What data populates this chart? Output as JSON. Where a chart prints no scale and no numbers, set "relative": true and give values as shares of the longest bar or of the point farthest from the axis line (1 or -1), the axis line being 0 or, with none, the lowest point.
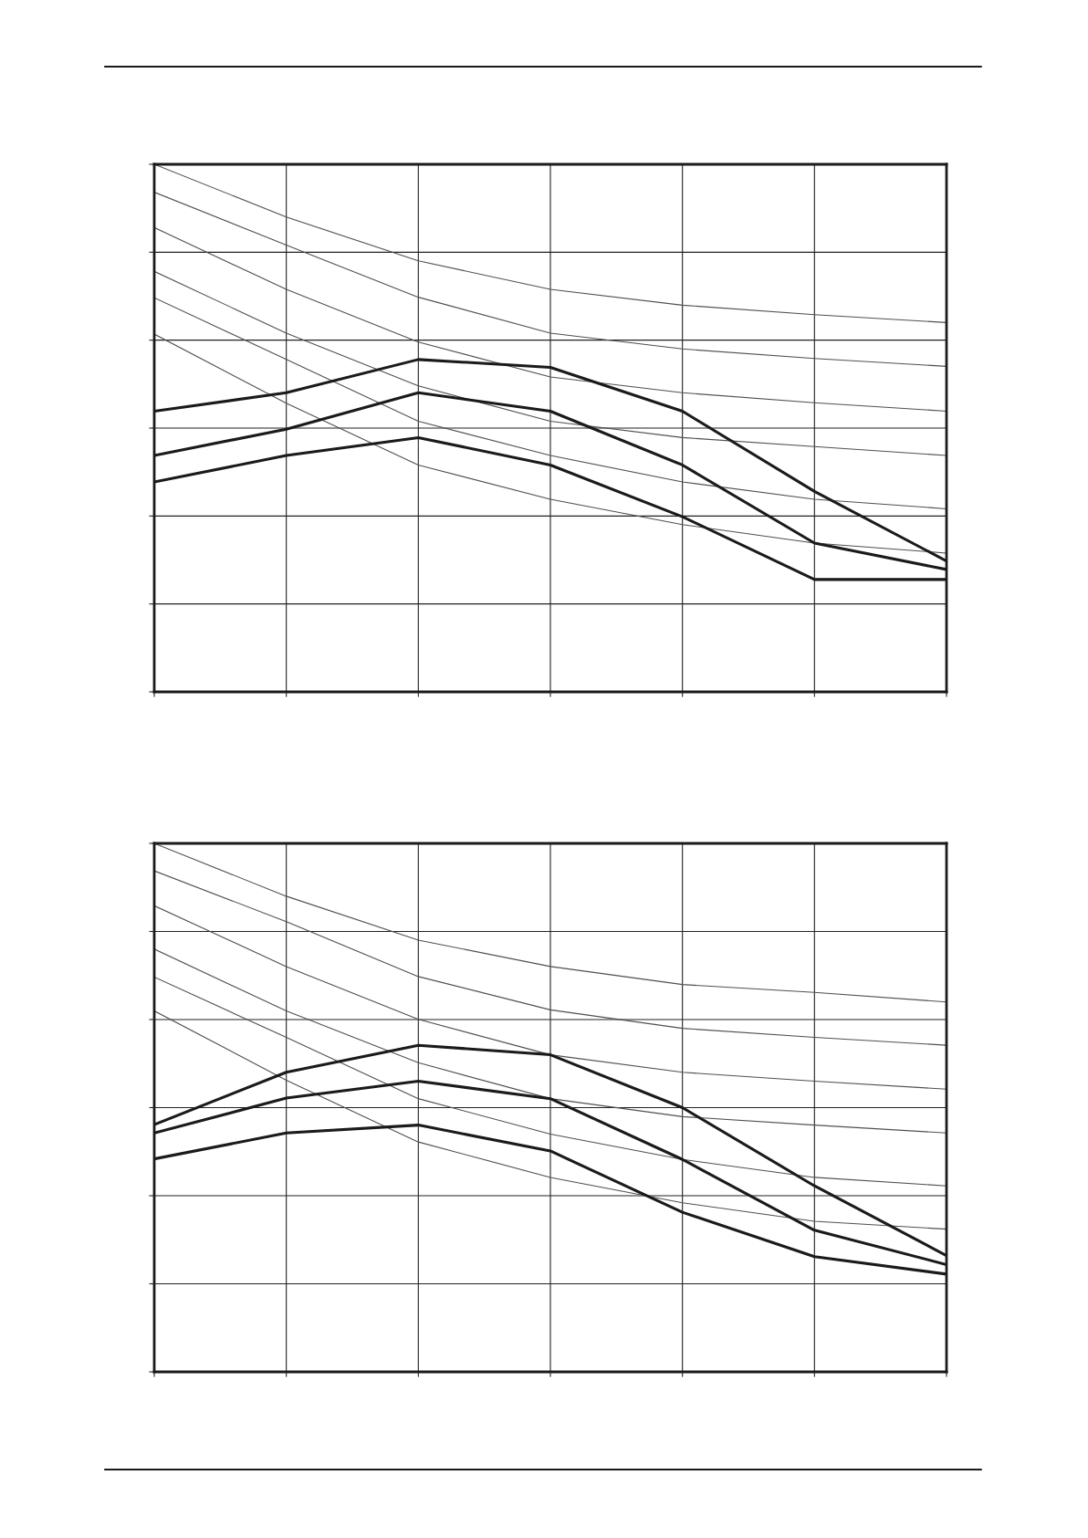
{
  "chart_data": [
    {
      "type": "line",
      "relative": true,
      "grid": true,
      "marker": "none",
      "line_style": "solid",
      "categories": [
        null,
        null,
        null,
        null,
        null,
        null,
        null
      ],
      "series": [
        {
          "color": "#505050",
          "values": [
            1,
            0.9,
            0.817,
            0.763,
            0.733,
            0.715,
            0.7
          ]
        },
        {
          "color": "#505050",
          "values": [
            0.947,
            0.847,
            0.748,
            0.68,
            0.65,
            0.632,
            0.617
          ]
        },
        {
          "color": "#505050",
          "values": [
            0.88,
            0.763,
            0.663,
            0.597,
            0.567,
            0.548,
            0.532
          ]
        },
        {
          "color": "#505050",
          "values": [
            0.797,
            0.68,
            0.58,
            0.513,
            0.482,
            0.465,
            0.448
          ]
        },
        {
          "color": "#505050",
          "values": [
            0.747,
            0.63,
            0.513,
            0.448,
            0.398,
            0.365,
            0.347
          ]
        },
        {
          "color": "#505050",
          "values": [
            0.678,
            0.547,
            0.43,
            0.365,
            0.317,
            0.282,
            0.263
          ]
        },
        {
          "color": "#1a1a1a",
          "values": [
            0.532,
            0.567,
            0.63,
            0.615,
            0.532,
            0.38,
            0.248
          ]
        },
        {
          "color": "#1a1a1a",
          "values": [
            0.448,
            0.498,
            0.567,
            0.532,
            0.43,
            0.282,
            0.232
          ]
        },
        {
          "color": "#1a1a1a",
          "values": [
            0.398,
            0.448,
            0.482,
            0.43,
            0.332,
            0.213,
            0.213
          ]
        }
      ]
    },
    {
      "type": "line",
      "relative": true,
      "grid": true,
      "marker": "none",
      "line_style": "solid",
      "categories": [
        null,
        null,
        null,
        null,
        null,
        null,
        null
      ],
      "series": [
        {
          "color": "#505050",
          "values": [
            1,
            0.9,
            0.817,
            0.767,
            0.733,
            0.718,
            0.7
          ]
        },
        {
          "color": "#505050",
          "values": [
            0.948,
            0.852,
            0.748,
            0.685,
            0.65,
            0.633,
            0.618
          ]
        },
        {
          "color": "#505050",
          "values": [
            0.882,
            0.767,
            0.667,
            0.6,
            0.567,
            0.55,
            0.535
          ]
        },
        {
          "color": "#505050",
          "values": [
            0.8,
            0.683,
            0.585,
            0.517,
            0.483,
            0.467,
            0.452
          ]
        },
        {
          "color": "#505050",
          "values": [
            0.747,
            0.633,
            0.517,
            0.45,
            0.402,
            0.368,
            0.352
          ]
        },
        {
          "color": "#505050",
          "values": [
            0.683,
            0.552,
            0.435,
            0.368,
            0.32,
            0.285,
            0.27
          ]
        },
        {
          "color": "#1a1a1a",
          "values": [
            0.468,
            0.567,
            0.618,
            0.6,
            0.5,
            0.352,
            0.22
          ]
        },
        {
          "color": "#1a1a1a",
          "values": [
            0.452,
            0.518,
            0.55,
            0.517,
            0.402,
            0.268,
            0.203
          ]
        },
        {
          "color": "#1a1a1a",
          "values": [
            0.403,
            0.452,
            0.467,
            0.418,
            0.302,
            0.218,
            0.185
          ]
        }
      ]
    }
  ]
}
